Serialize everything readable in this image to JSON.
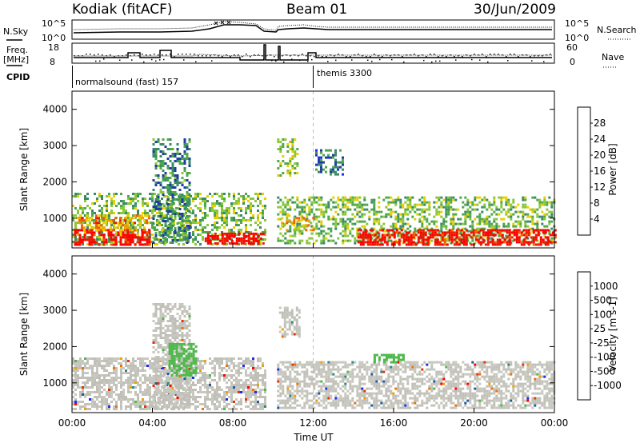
{
  "header": {
    "station": "Kodiak (fitACF)",
    "beam": "Beam 01",
    "date": "30/Jun/2009"
  },
  "top_panels": {
    "nsky_label": "N.Sky",
    "nsky_ticks": [
      "10^5",
      "10^0"
    ],
    "nsearch_label": "N.Search",
    "nsearch_ticks": [
      "10^5",
      "10^0"
    ],
    "freq_label_1": "Freq.",
    "freq_label_2": "[MHz]",
    "freq_ticks": [
      "18",
      "8"
    ],
    "nave_label": "Nave",
    "nave_ticks": [
      "60",
      "0"
    ],
    "cpid_label": "CPID",
    "cpid_1": "normalsound (fast) 157",
    "cpid_2": "themis 3300"
  },
  "power_panel": {
    "ylabel": "Slant Range [km]",
    "yticks": [
      "4000",
      "3000",
      "2000",
      "1000"
    ],
    "colorbar_label": "Power [dB]",
    "colorbar_ticks": [
      "28",
      "24",
      "20",
      "16",
      "12",
      "8",
      "4"
    ],
    "colors": [
      "#1f2be6",
      "#1f3ea1",
      "#3a8a6a",
      "#4fa84a",
      "#8ac83a",
      "#e8d000",
      "#f0a000",
      "#f06000",
      "#e81e00",
      "#ff0000"
    ]
  },
  "velocity_panel": {
    "ylabel": "Slant Range [km]",
    "yticks": [
      "4000",
      "3000",
      "2000",
      "1000"
    ],
    "colorbar_label": "Velocity [m s-1]",
    "colorbar_ticks": [
      "1000",
      "500",
      "100",
      "25",
      "-25",
      "-100",
      "-500",
      "-1000"
    ],
    "colors": [
      "#1f2be6",
      "#1f5aa0",
      "#2a8a80",
      "#4fb84a",
      "#c8c8c0",
      "#c8c8c0",
      "#f0a000",
      "#f07000",
      "#e83000",
      "#ff0000"
    ],
    "ground_scatter": "#c0c0b8"
  },
  "xaxis": {
    "label": "Time UT",
    "ticks": [
      "00:00",
      "04:00",
      "08:00",
      "12:00",
      "16:00",
      "20:00",
      "00:00"
    ]
  },
  "chart_data": {
    "type": "heatmap",
    "title": "Kodiak (fitACF) Beam 01 30/Jun/2009",
    "xlabel": "Time UT",
    "ylabel": "Slant Range [km]",
    "xlim_hours": [
      0,
      24
    ],
    "ylim_km": [
      180,
      4500
    ],
    "panels": [
      {
        "name": "Power [dB]",
        "colorbar_range": [
          0,
          30
        ],
        "regions": [
          {
            "t0": 0.0,
            "t1": 9.6,
            "r0": 250,
            "r1": 1700,
            "value": 12
          },
          {
            "t0": 0.1,
            "t1": 3.9,
            "r0": 300,
            "r1": 700,
            "value": 28
          },
          {
            "t0": 0.2,
            "t1": 3.8,
            "r0": 700,
            "r1": 1100,
            "value": 20
          },
          {
            "t0": 4.0,
            "t1": 5.8,
            "r0": 300,
            "r1": 3200,
            "value": 8
          },
          {
            "t0": 6.6,
            "t1": 9.5,
            "r0": 300,
            "r1": 600,
            "value": 30
          },
          {
            "t0": 10.2,
            "t1": 24.0,
            "r0": 300,
            "r1": 1600,
            "value": 12
          },
          {
            "t0": 10.4,
            "t1": 12.0,
            "r0": 700,
            "r1": 1100,
            "value": 18
          },
          {
            "t0": 14.2,
            "t1": 24.0,
            "r0": 300,
            "r1": 700,
            "value": 28
          },
          {
            "t0": 10.2,
            "t1": 11.2,
            "r0": 2200,
            "r1": 3200,
            "value": 14
          },
          {
            "t0": 12.1,
            "t1": 13.5,
            "r0": 2200,
            "r1": 2900,
            "value": 6
          }
        ]
      },
      {
        "name": "Velocity [m s-1]",
        "colorbar_range": [
          -1000,
          1000
        ],
        "regions": [
          {
            "t0": 0.0,
            "t1": 9.6,
            "r0": 250,
            "r1": 1700,
            "value": 0
          },
          {
            "t0": 4.0,
            "t1": 5.8,
            "r0": 300,
            "r1": 3200,
            "value": 0
          },
          {
            "t0": 10.2,
            "t1": 24.0,
            "r0": 300,
            "r1": 1600,
            "value": 0
          },
          {
            "t0": 4.8,
            "t1": 6.2,
            "r0": 1200,
            "r1": 2100,
            "value": -300
          },
          {
            "t0": 15.0,
            "t1": 16.5,
            "r0": 1600,
            "r1": 1800,
            "value": -300
          },
          {
            "t0": 10.3,
            "t1": 11.3,
            "r0": 2300,
            "r1": 3100,
            "value": 0
          }
        ]
      }
    ]
  }
}
